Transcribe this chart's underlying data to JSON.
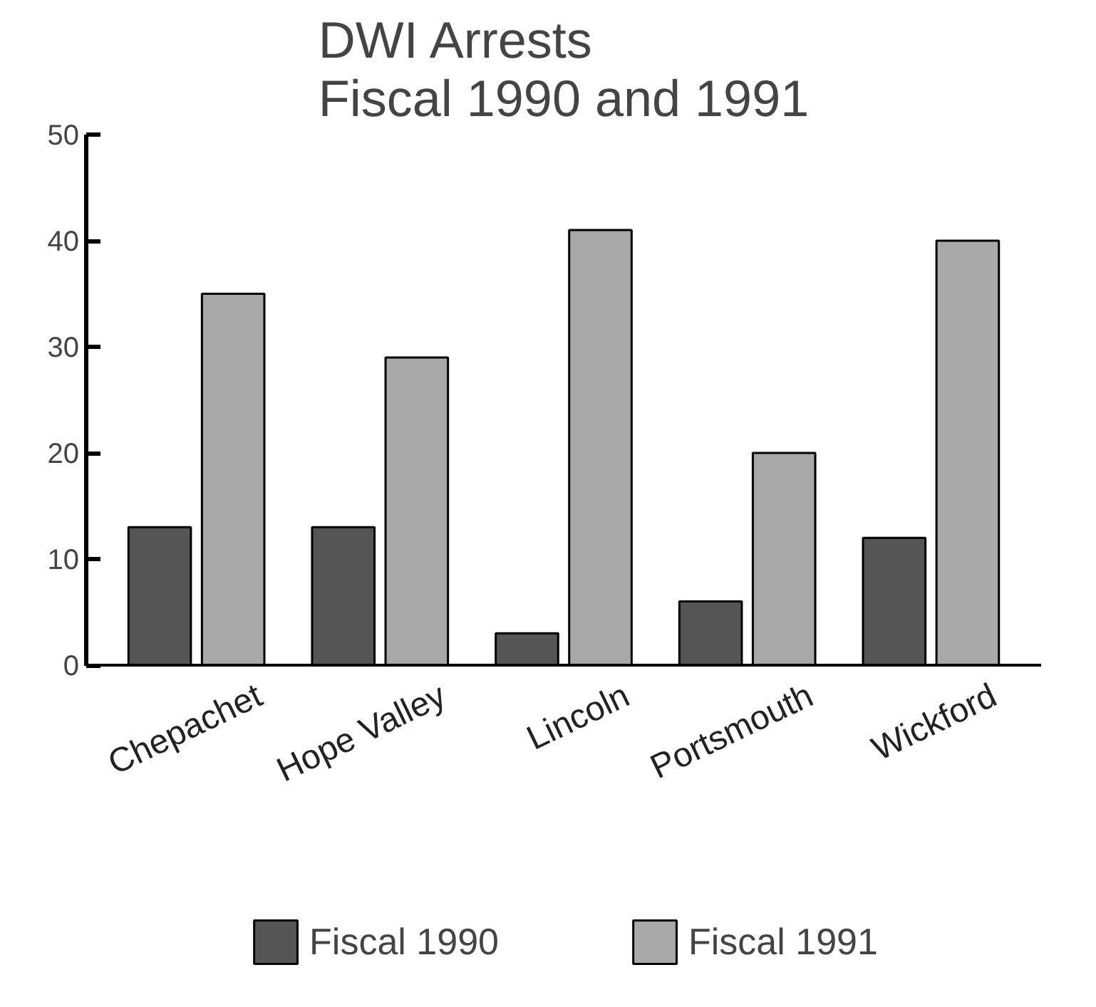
{
  "chart_data": {
    "type": "bar",
    "title": "DWI Arrests\nFiscal 1990 and 1991",
    "categories": [
      "Chepachet",
      "Hope Valley",
      "Lincoln",
      "Portsmouth",
      "Wickford"
    ],
    "series": [
      {
        "name": "Fiscal 1990",
        "color": "#555555",
        "values": [
          13,
          13,
          3,
          6,
          12
        ]
      },
      {
        "name": "Fiscal 1991",
        "color": "#a8a8a8",
        "values": [
          35,
          29,
          41,
          20,
          40
        ]
      }
    ],
    "ylim": [
      0,
      50
    ],
    "yticks": [
      0,
      10,
      20,
      30,
      40,
      50
    ],
    "grid": false,
    "legend": "bottom"
  }
}
